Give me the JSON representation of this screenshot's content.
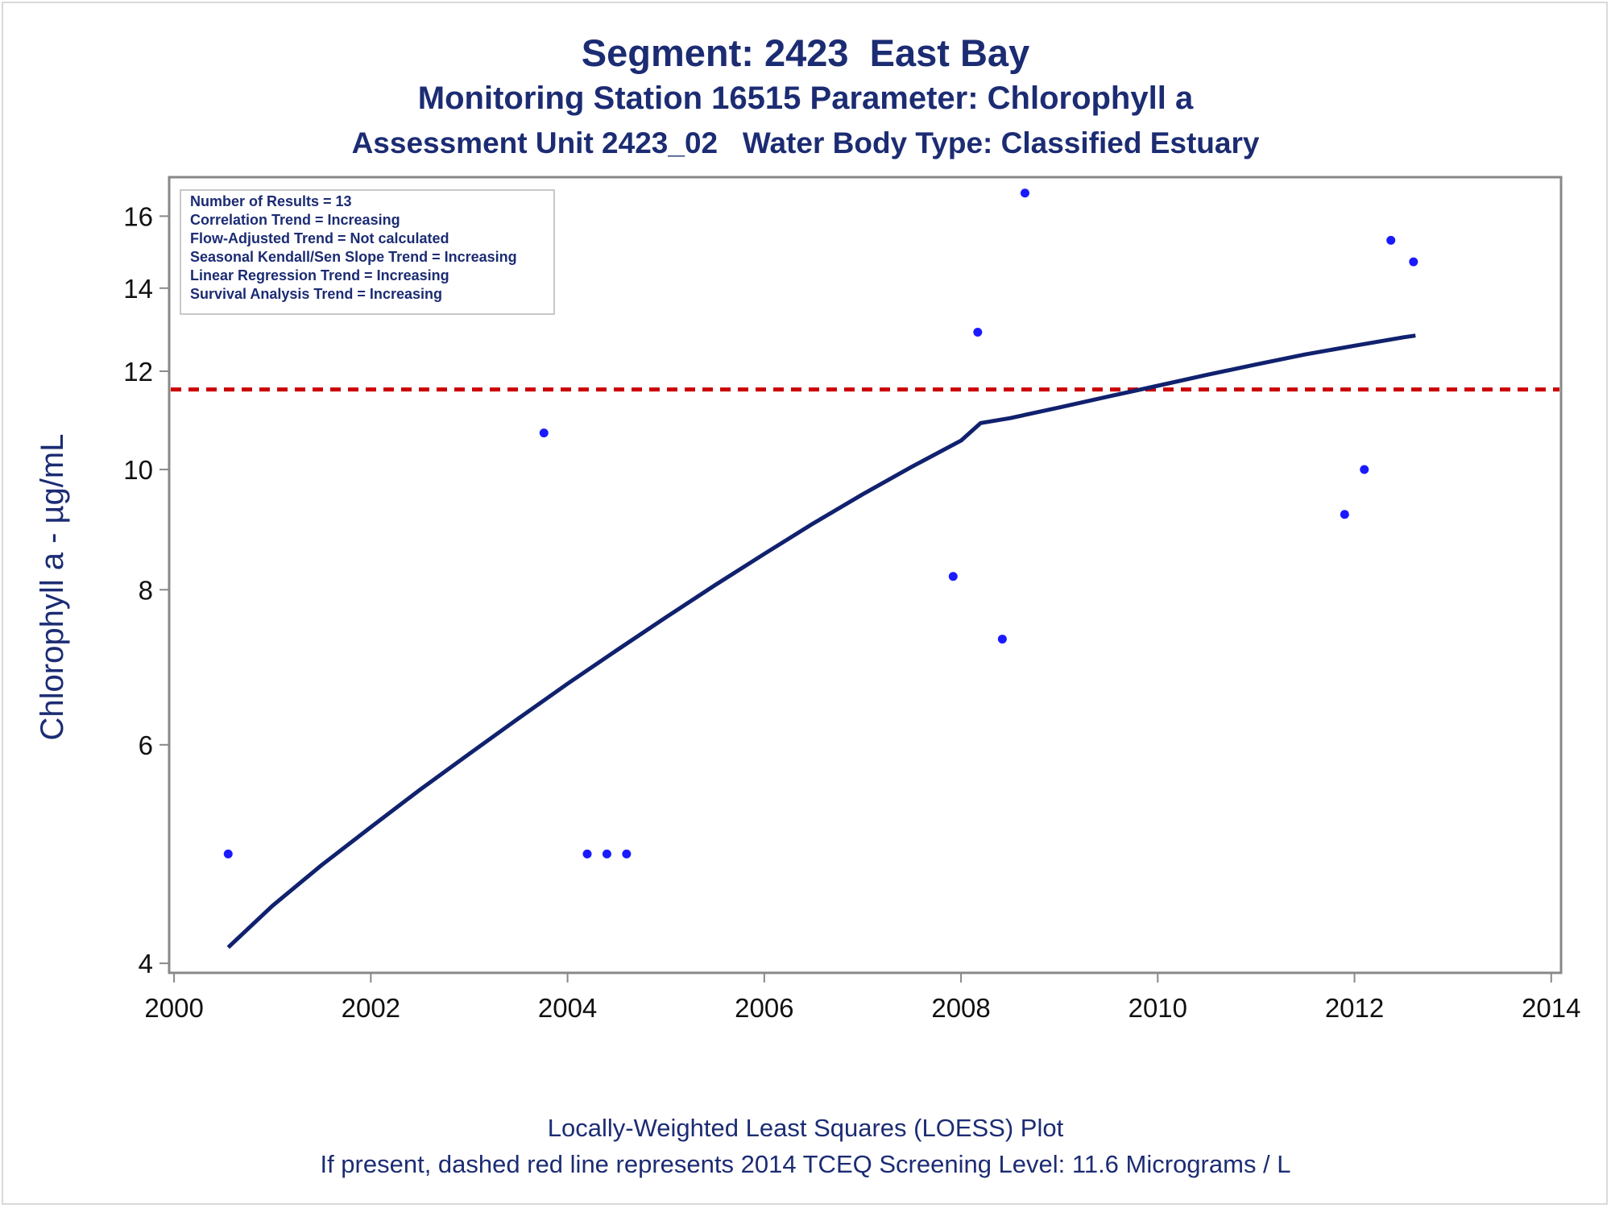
{
  "titles": {
    "line1": "Segment: 2423  East Bay",
    "line2": "Monitoring Station 16515 Parameter: Chlorophyll a",
    "line3": "Assessment Unit 2423_02   Water Body Type: Classified Estuary"
  },
  "footnotes": {
    "line1": "Locally-Weighted Least Squares (LOESS) Plot",
    "line2": "If present, dashed red line represents 2014 TCEQ Screening Level: 11.6 Micrograms / L"
  },
  "stats_box": [
    "Number of Results = 13",
    "Correlation Trend = Increasing",
    "Flow-Adjusted Trend = Not calculated",
    "Seasonal Kendall/Sen Slope Trend = Increasing",
    "Linear Regression Trend = Increasing",
    "Survival Analysis Trend = Increasing"
  ],
  "colors": {
    "text": "#1c2c73",
    "points": "#1a1aff",
    "loess": "#10216e",
    "screening": "#cc0000",
    "axis": "#888888"
  },
  "chart_data": {
    "type": "scatter",
    "title": "Segment: 2423  East Bay",
    "xlabel": "",
    "ylabel": "Chlorophyll a -  µg/mL",
    "x_ticks": [
      2000,
      2002,
      2004,
      2006,
      2008,
      2010,
      2012,
      2014
    ],
    "y_ticks": [
      4,
      6,
      8,
      10,
      12,
      14,
      16
    ],
    "xlim": [
      1999.95,
      2014.1
    ],
    "ylim": [
      3.93,
      17.2
    ],
    "y_scale": "log",
    "grid": false,
    "series": [
      {
        "kind": "points",
        "x": [
          2000.55,
          2003.76,
          2004.2,
          2004.4,
          2004.6,
          2007.92,
          2008.17,
          2008.42,
          2008.65,
          2011.9,
          2012.1,
          2012.37,
          2012.6
        ],
        "y": [
          4.9,
          10.7,
          4.9,
          4.9,
          4.9,
          8.2,
          12.9,
          7.3,
          16.7,
          9.2,
          10.0,
          15.3,
          14.7
        ]
      },
      {
        "kind": "loess",
        "x": [
          2000.55,
          2001.0,
          2001.5,
          2002.0,
          2002.5,
          2003.0,
          2003.5,
          2004.0,
          2004.5,
          2005.0,
          2005.5,
          2006.0,
          2006.5,
          2007.0,
          2007.5,
          2008.0,
          2008.2,
          2008.5,
          2009.0,
          2009.5,
          2010.0,
          2010.5,
          2011.0,
          2011.5,
          2012.0,
          2012.5,
          2012.62
        ],
        "y": [
          4.12,
          4.45,
          4.8,
          5.15,
          5.52,
          5.9,
          6.3,
          6.72,
          7.15,
          7.6,
          8.07,
          8.55,
          9.05,
          9.55,
          10.05,
          10.55,
          10.9,
          11.0,
          11.22,
          11.45,
          11.68,
          11.92,
          12.15,
          12.38,
          12.58,
          12.78,
          12.82
        ]
      }
    ],
    "reference_line": {
      "y": 11.6,
      "style": "dashed",
      "color": "#cc0000"
    }
  }
}
